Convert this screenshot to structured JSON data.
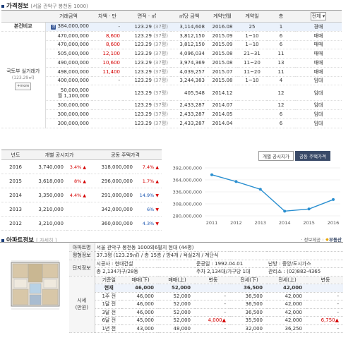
{
  "price_section": {
    "title": "가격정보",
    "subtitle": "(서울 관악구 봉천동 1000)",
    "headers": [
      "거래금액",
      "차액 · 만",
      "면적 · ㎡",
      "㎡당 금액",
      "계약년월",
      "계약일",
      "층",
      "전체"
    ],
    "self_label": "본건비교",
    "group_label": "국토부 실거래가",
    "group_sub": "(123.29㎡)",
    "more_label": "+more",
    "rows": [
      {
        "price": "384,000,000",
        "diff": "-",
        "area": "123.29",
        "pyeong": "(37평)",
        "per": "3,114,608",
        "ym": "2016.08",
        "day": "25",
        "floor": "1",
        "type": "경매"
      },
      {
        "price": "470,000,000",
        "diff": "8,600",
        "area": "123.29",
        "pyeong": "(37평)",
        "per": "3,812,150",
        "ym": "2015.09",
        "day": "1~10",
        "floor": "6",
        "type": "매매"
      },
      {
        "price": "470,000,000",
        "diff": "8,600",
        "area": "123.29",
        "pyeong": "(37평)",
        "per": "3,812,150",
        "ym": "2015.09",
        "day": "1~10",
        "floor": "6",
        "type": "매매"
      },
      {
        "price": "505,000,000",
        "diff": "12,100",
        "area": "123.29",
        "pyeong": "(37평)",
        "per": "4,096,034",
        "ym": "2015.08",
        "day": "21~31",
        "floor": "11",
        "type": "매매"
      },
      {
        "price": "490,000,000",
        "diff": "10,600",
        "area": "123.29",
        "pyeong": "(37평)",
        "per": "3,974,369",
        "ym": "2015.08",
        "day": "11~20",
        "floor": "13",
        "type": "매매"
      },
      {
        "price": "498,000,000",
        "diff": "11,400",
        "area": "123.29",
        "pyeong": "(37평)",
        "per": "4,039,257",
        "ym": "2015.07",
        "day": "11~20",
        "floor": "11",
        "type": "매매"
      },
      {
        "price": "400,000,000",
        "diff": "-",
        "area": "123.29",
        "pyeong": "(37평)",
        "per": "3,244,383",
        "ym": "2015.08",
        "day": "1~10",
        "floor": "4",
        "type": "임대"
      },
      {
        "price": "50,000,000",
        "price2": "월 1,100,000",
        "diff": "",
        "area": "123.29",
        "pyeong": "(37평)",
        "per": "405,548",
        "ym": "2014.12",
        "day": "",
        "floor": "12",
        "type": "임대"
      },
      {
        "price": "300,000,000",
        "diff": "",
        "area": "123.29",
        "pyeong": "(37평)",
        "per": "2,433,287",
        "ym": "2014.07",
        "day": "",
        "floor": "12",
        "type": "임대"
      },
      {
        "price": "300,000,000",
        "diff": "",
        "area": "123.29",
        "pyeong": "(37평)",
        "per": "2,433,287",
        "ym": "2014.05",
        "day": "",
        "floor": "6",
        "type": "임대"
      },
      {
        "price": "300,000,000",
        "diff": "",
        "area": "123.29",
        "pyeong": "(37평)",
        "per": "2,433,287",
        "ym": "2014.04",
        "day": "",
        "floor": "6",
        "type": "임대"
      }
    ]
  },
  "gongsi": {
    "headers": [
      "년도",
      "개별 공시지가",
      "공동 주택가격"
    ],
    "rows": [
      {
        "year": "2016",
        "land": "3,740,000",
        "land_rate": "3.4%",
        "land_up": true,
        "house": "318,000,000",
        "house_rate": "7.4%",
        "house_up": true
      },
      {
        "year": "2015",
        "land": "3,618,000",
        "land_rate": "8%",
        "land_up": true,
        "house": "296,000,000",
        "house_rate": "1.7%",
        "house_up": true
      },
      {
        "year": "2014",
        "land": "3,350,000",
        "land_rate": "4.4%",
        "land_up": true,
        "house": "291,000,000",
        "house_rate": "14.9%",
        "house_up": false
      },
      {
        "year": "2013",
        "land": "3,210,000",
        "land_rate": "",
        "land_up": null,
        "house": "342,000,000",
        "house_rate": "6%",
        "house_up": false
      },
      {
        "year": "2012",
        "land": "3,210,000",
        "land_rate": "",
        "land_up": null,
        "house": "360,000,000",
        "house_rate": "4.3%",
        "house_up": false
      }
    ]
  },
  "chart_tabs": [
    "개별 공시지가",
    "공동 주택가격"
  ],
  "chart_data": {
    "type": "line",
    "x": [
      "2011",
      "2012",
      "2013",
      "2014",
      "2015",
      "2016"
    ],
    "series": [
      {
        "values": [
          376000000,
          360000000,
          342000000,
          291000000,
          296000000,
          318000000
        ]
      }
    ],
    "yticks": [
      "392,000,000",
      "364,000,000",
      "336,000,000",
      "308,000,000",
      "280,000,000"
    ],
    "ylim": [
      280000000,
      392000000
    ],
    "color": "#2a8fd0"
  },
  "apt": {
    "title": "아파트정보",
    "view": "[ 자세히 ]",
    "source": "· 정보제공 :",
    "source_brand": "부동산",
    "labels": {
      "name": "아파트명",
      "plan": "평형정보",
      "complex": "단지정보",
      "market": "시세",
      "market2": "(만원)"
    },
    "name": "서울 관악구 봉천동 1000외6필지 현대 (44평)",
    "plan": "37.3평 (123.29㎡) / 총 15층 / 방4개 / 욕실2개 / 계단식",
    "complex1": [
      "시공사 : 현대건설",
      "준공일 : 1992.04.01",
      "난방 : 중앙/도시가스"
    ],
    "complex2": [
      "총 2,134가구/28동",
      "주차 2,134대/가구당 1대",
      "관리소 : (02)882-4365"
    ],
    "market_head": [
      "기준일",
      "매매(下)",
      "매매(上)",
      "변동",
      "전세(下)",
      "전세(上)",
      "변동"
    ],
    "market_rows": [
      [
        "현재",
        "46,000",
        "52,000",
        "",
        "36,500",
        "42,000",
        ""
      ],
      [
        "1주 전",
        "46,000",
        "52,000",
        "-",
        "36,500",
        "42,000",
        "-"
      ],
      [
        "1달 전",
        "46,000",
        "52,000",
        "-",
        "36,500",
        "42,000",
        "-"
      ],
      [
        "3달 전",
        "46,000",
        "52,000",
        "-",
        "36,500",
        "42,000",
        "-"
      ],
      [
        "6달 전",
        "45,000",
        "52,000",
        "4,000▲",
        "35,500",
        "42,000",
        "6,750▲"
      ],
      [
        "1년 전",
        "43,000",
        "48,000",
        "-",
        "32,000",
        "36,250",
        "-"
      ]
    ]
  }
}
